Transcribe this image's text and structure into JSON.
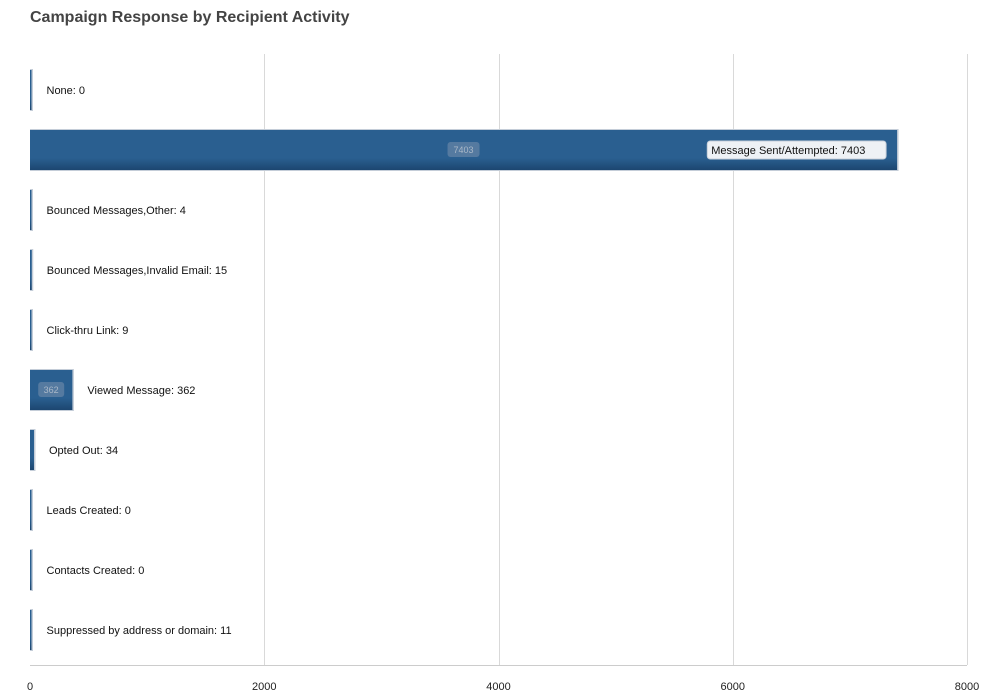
{
  "chart_data": {
    "type": "bar",
    "orientation": "horizontal",
    "title": "Campaign Response by Recipient Activity",
    "xlabel": "",
    "ylabel": "",
    "xlim": [
      0,
      8000
    ],
    "xticks": [
      0,
      2000,
      4000,
      6000,
      8000
    ],
    "grid": true,
    "categories": [
      "None",
      "Message Sent/Attempted",
      "Bounced Messages,Other",
      "Bounced Messages,Invalid Email",
      "Click-thru Link",
      "Viewed Message",
      "Opted Out",
      "Leads Created",
      "Contacts Created",
      "Suppressed by address or domain"
    ],
    "values": [
      0,
      7403,
      4,
      15,
      9,
      362,
      34,
      0,
      0,
      11
    ],
    "data_labels": [
      "None: 0",
      "Message Sent/Attempted: 7403",
      "Bounced Messages,Other: 4",
      "Bounced Messages,Invalid Email: 15",
      "Click-thru Link: 9",
      "Viewed Message: 362",
      "Opted Out: 34",
      "Leads Created: 0",
      "Contacts Created: 0",
      "Suppressed by address or domain: 11"
    ],
    "inner_labels": [
      "",
      "7403",
      "",
      "",
      "",
      "362",
      "",
      "",
      "",
      ""
    ],
    "bar_color": "#2a5f90",
    "bar_color_dark": "#1c4670",
    "bar_border_color": "#c4cdd8"
  }
}
